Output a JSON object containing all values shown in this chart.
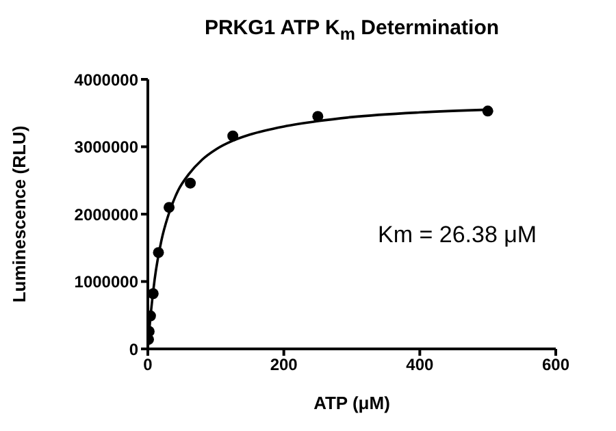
{
  "chart_data": {
    "type": "scatter",
    "title": "PRKG1  ATP K$_{m}$ Determination",
    "xlabel": "ATP (μM)",
    "ylabel": "Luminescence (RLU)",
    "annotations": [
      "Km = 26.38 μM"
    ],
    "xlim": [
      0,
      600
    ],
    "xticks": [
      0,
      200,
      400,
      600
    ],
    "ylim": [
      0,
      4000000
    ],
    "yticks": [
      0,
      1000000,
      2000000,
      3000000,
      4000000
    ],
    "grid": false,
    "legend": false,
    "marker": "circle",
    "series": [
      {
        "color": "#000000",
        "x": [
          0.98,
          1.95,
          3.9,
          7.8,
          15.6,
          31.25,
          62.5,
          125,
          250,
          500
        ],
        "values": [
          140000,
          260000,
          490000,
          820000,
          1430000,
          2100000,
          2460000,
          3160000,
          3450000,
          3530000
        ]
      },
      {
        "type": "line",
        "color": "#000000",
        "marker": "none",
        "line_style": "solid",
        "x": [
          0,
          2,
          5,
          10,
          20,
          30,
          45,
          60,
          80,
          100,
          125,
          150,
          200,
          250,
          300,
          400,
          500
        ],
        "values": [
          0,
          260000,
          590000,
          1030000,
          1610000,
          1980000,
          2360000,
          2590000,
          2810000,
          2960000,
          3090000,
          3180000,
          3300000,
          3380000,
          3440000,
          3510000,
          3550000
        ]
      }
    ]
  }
}
